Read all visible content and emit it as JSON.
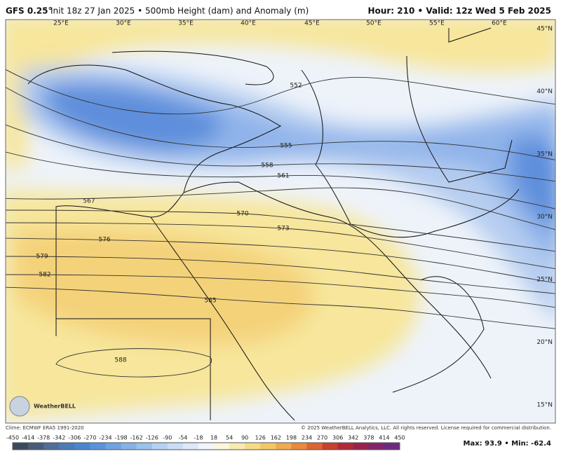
{
  "header": {
    "model": "GFS 0.25°",
    "description": "Init 18z 27 Jan 2025 • 500mb Height (dam) and Anomaly (m)",
    "valid": "Hour: 210 • Valid: 12z Wed 5 Feb 2025"
  },
  "map": {
    "longitude_labels": [
      "25°E",
      "30°E",
      "35°E",
      "40°E",
      "45°E",
      "50°E",
      "55°E",
      "60°E"
    ],
    "latitude_labels": [
      "45°N",
      "40°N",
      "35°N",
      "30°N",
      "25°N",
      "20°N",
      "15°N"
    ],
    "contour_labels": [
      "552",
      "555",
      "558",
      "561",
      "567",
      "570",
      "573",
      "576",
      "579",
      "582",
      "585",
      "588"
    ],
    "logo": "WeatherBELL"
  },
  "footer": {
    "climatology": "Clime: ECMWF ERA5 1991-2020",
    "copyright": "© 2025 WeatherBELL Analytics, LLC. All rights reserved. License required for commercial distribution.",
    "colorbar_ticks": [
      -450,
      -414,
      -378,
      -342,
      -306,
      -270,
      -234,
      -198,
      -162,
      -126,
      -90,
      -54,
      -18,
      18,
      54,
      90,
      126,
      162,
      198,
      234,
      270,
      306,
      342,
      378,
      414,
      450
    ],
    "max_min": "Max: 93.9 • Min: -62.4"
  }
}
